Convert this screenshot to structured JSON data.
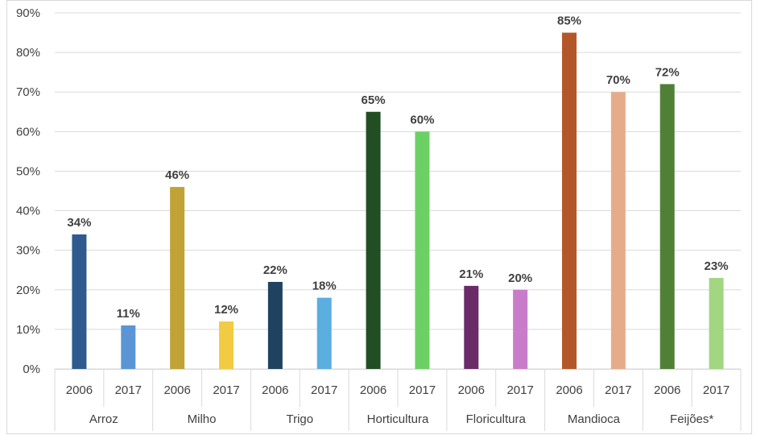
{
  "chart_data": {
    "type": "bar",
    "title": "",
    "xlabel": "",
    "ylabel": "",
    "ylim": [
      0,
      90
    ],
    "y_ticks": [
      "0%",
      "10%",
      "20%",
      "30%",
      "40%",
      "50%",
      "60%",
      "70%",
      "80%",
      "90%"
    ],
    "grid": true,
    "legend": "none",
    "groups": [
      "Arroz",
      "Milho",
      "Trigo",
      "Horticultura",
      "Floricultura",
      "Mandioca",
      "Feijões*"
    ],
    "bars": [
      {
        "group": "Arroz",
        "year": "2006",
        "value": 34,
        "label": "34%",
        "color": "#2e5a8f"
      },
      {
        "group": "Arroz",
        "year": "2017",
        "value": 11,
        "label": "11%",
        "color": "#5b95d6"
      },
      {
        "group": "Milho",
        "year": "2006",
        "value": 46,
        "label": "46%",
        "color": "#c1a236"
      },
      {
        "group": "Milho",
        "year": "2017",
        "value": 12,
        "label": "12%",
        "color": "#f1cb42"
      },
      {
        "group": "Trigo",
        "year": "2006",
        "value": 22,
        "label": "22%",
        "color": "#1e4260"
      },
      {
        "group": "Trigo",
        "year": "2017",
        "value": 18,
        "label": "18%",
        "color": "#5aaee0"
      },
      {
        "group": "Horticultura",
        "year": "2006",
        "value": 65,
        "label": "65%",
        "color": "#214f23"
      },
      {
        "group": "Horticultura",
        "year": "2017",
        "value": 60,
        "label": "60%",
        "color": "#6cd164"
      },
      {
        "group": "Floricultura",
        "year": "2006",
        "value": 21,
        "label": "21%",
        "color": "#6a2b69"
      },
      {
        "group": "Floricultura",
        "year": "2017",
        "value": 20,
        "label": "20%",
        "color": "#c97cc9"
      },
      {
        "group": "Mandioca",
        "year": "2006",
        "value": 85,
        "label": "85%",
        "color": "#b45728"
      },
      {
        "group": "Mandioca",
        "year": "2017",
        "value": 70,
        "label": "70%",
        "color": "#e6ac8a"
      },
      {
        "group": "Feijões*",
        "year": "2006",
        "value": 72,
        "label": "72%",
        "color": "#508035"
      },
      {
        "group": "Feijões*",
        "year": "2017",
        "value": 23,
        "label": "23%",
        "color": "#a2d681"
      }
    ]
  }
}
